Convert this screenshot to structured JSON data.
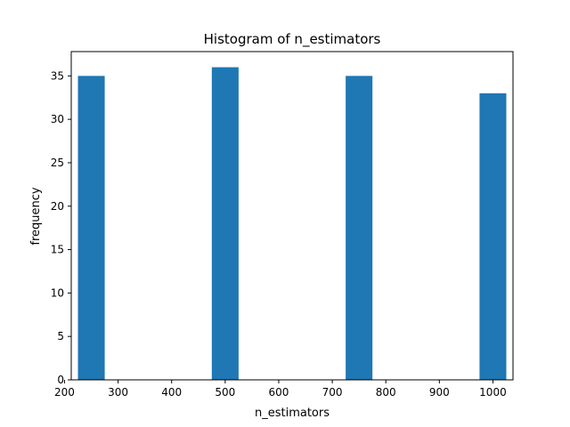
{
  "chart_data": {
    "type": "bar",
    "title": "Histogram of n_estimators",
    "xlabel": "n_estimators",
    "ylabel": "frequency",
    "bins": [
      {
        "x_start": 225,
        "x_end": 275,
        "count": 35
      },
      {
        "x_start": 475,
        "x_end": 525,
        "count": 36
      },
      {
        "x_start": 725,
        "x_end": 775,
        "count": 35
      },
      {
        "x_start": 975,
        "x_end": 1025,
        "count": 33
      }
    ],
    "xlim": [
      212.5,
      1037.5
    ],
    "ylim": [
      0,
      37.8
    ],
    "xticks": [
      200,
      300,
      400,
      500,
      600,
      700,
      800,
      900,
      1000
    ],
    "yticks": [
      0,
      5,
      10,
      15,
      20,
      25,
      30,
      35
    ],
    "bar_color": "#1f77b4",
    "grid": false,
    "legend": false
  }
}
